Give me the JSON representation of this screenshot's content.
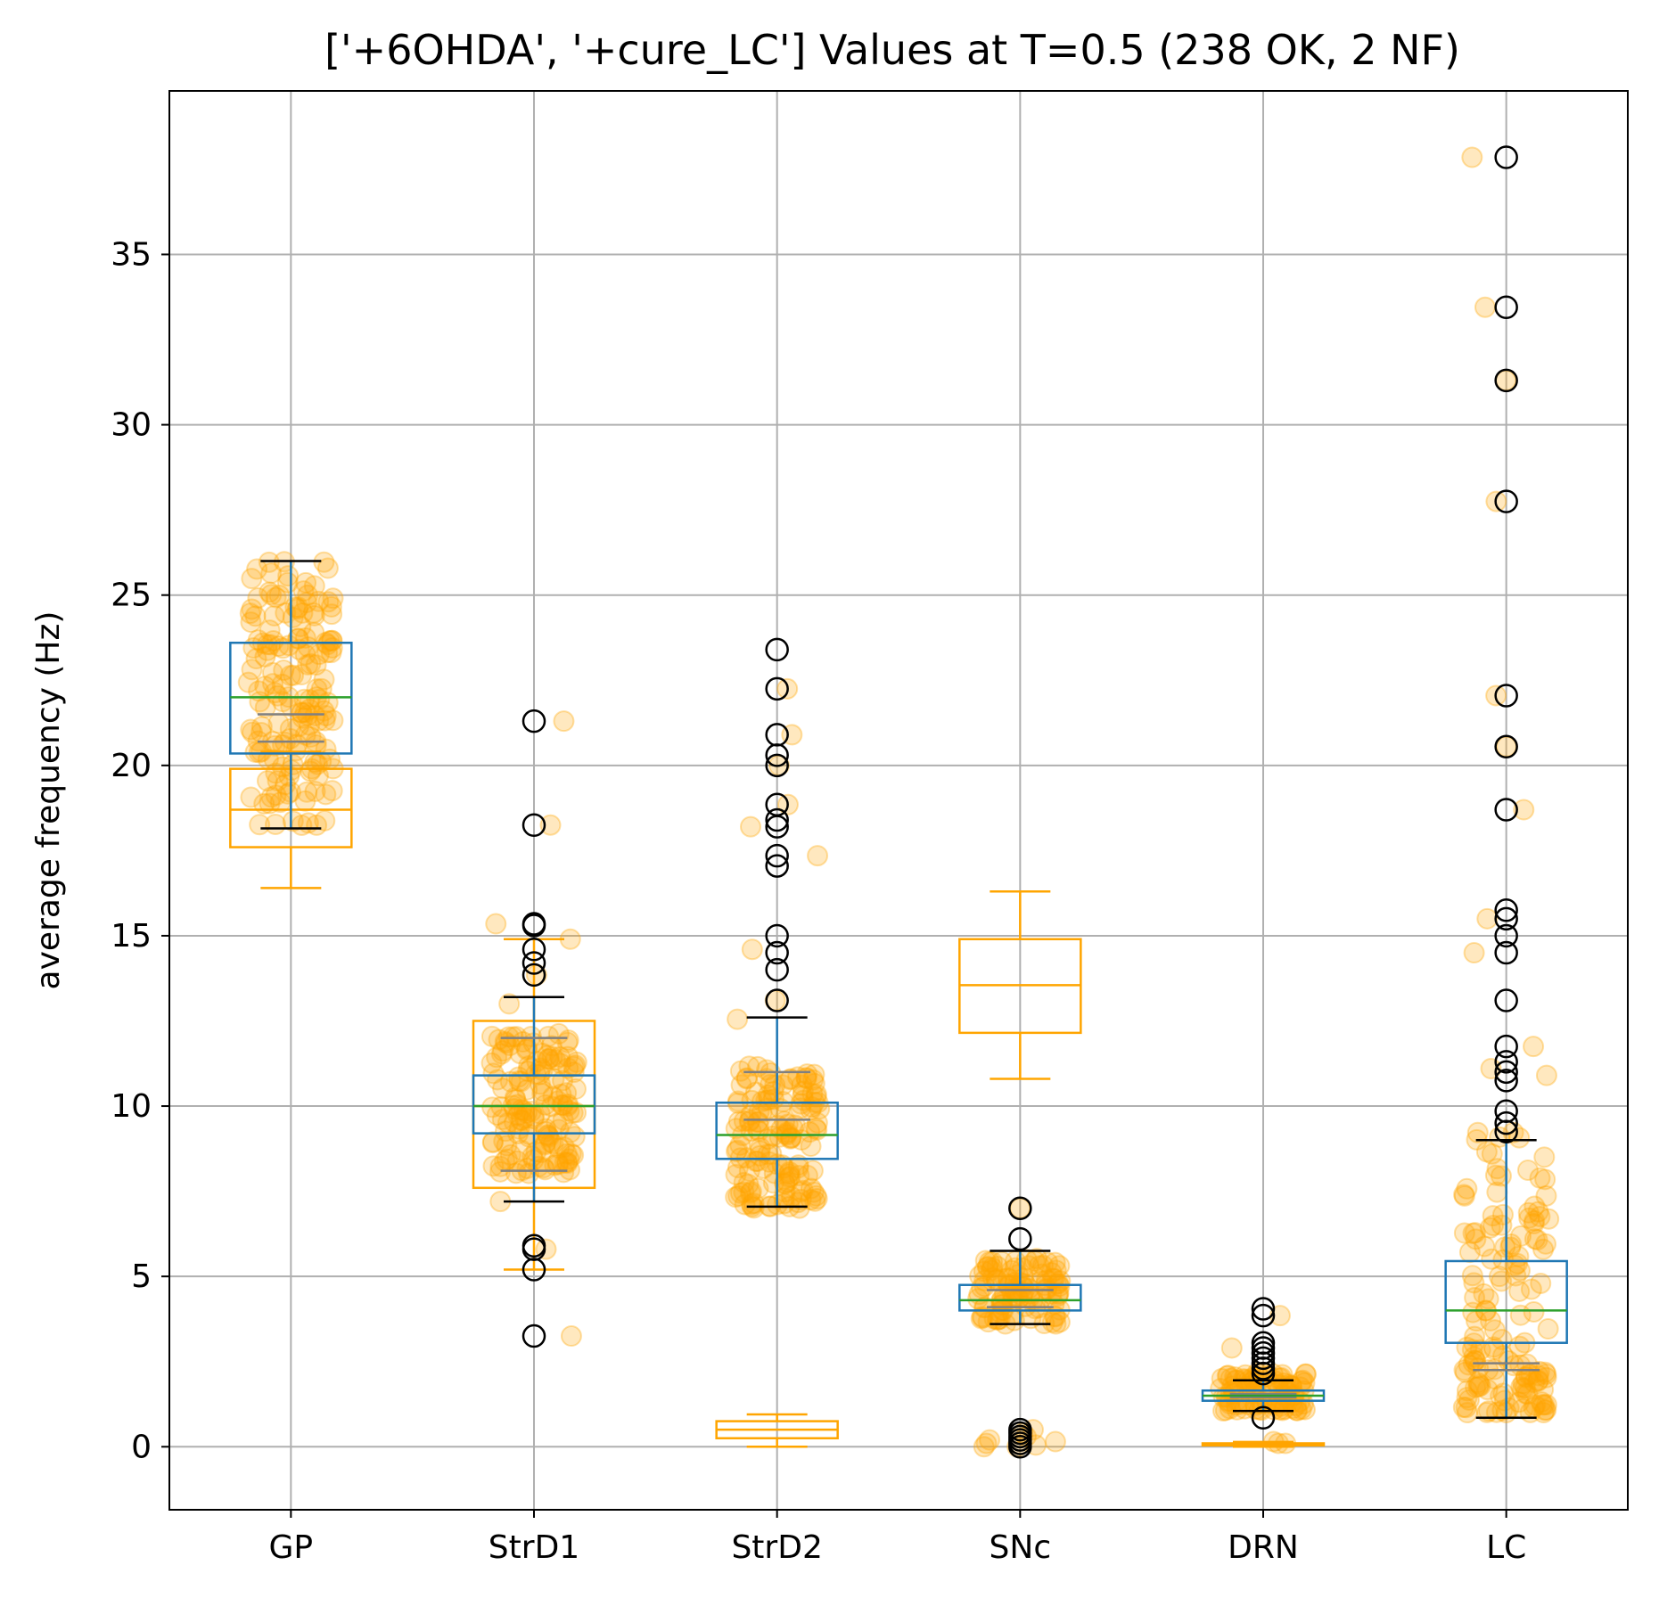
{
  "chart_data": {
    "type": "box",
    "title": "['+6OHDA', '+cure_LC'] Values at T=0.5 (238 OK, 2 NF)",
    "xlabel": "",
    "ylabel": "average frequency (Hz)",
    "ylim": [
      -1.85,
      39.8
    ],
    "grid": true,
    "categories": [
      "GP",
      "StrD1",
      "StrD2",
      "SNc",
      "DRN",
      "LC"
    ],
    "yticks": [
      0,
      5,
      10,
      15,
      20,
      25,
      30,
      35
    ],
    "colors": {
      "reference_box": "#ffa500",
      "box": "#1f77b4",
      "median": "#2ca02c",
      "mean_marker": "#808080",
      "points": "#ffa500",
      "outlier_edge": "#000000",
      "grid": "#b0b0b0"
    },
    "reference_boxes": [
      {
        "category": "GP",
        "whisker_low": 16.4,
        "q1": 17.6,
        "median": 18.7,
        "q3": 19.9,
        "whisker_high": 20.4
      },
      {
        "category": "StrD1",
        "whisker_low": 5.2,
        "q1": 7.6,
        "median": 10.0,
        "q3": 12.5,
        "whisker_high": 14.9
      },
      {
        "category": "StrD2",
        "whisker_low": 0.0,
        "q1": 0.25,
        "median": 0.5,
        "q3": 0.75,
        "whisker_high": 0.95
      },
      {
        "category": "SNc",
        "whisker_low": 10.8,
        "q1": 12.15,
        "median": 13.55,
        "q3": 14.9,
        "whisker_high": 16.3
      },
      {
        "category": "DRN",
        "whisker_low": 0.0,
        "q1": 0.04,
        "median": 0.07,
        "q3": 0.1,
        "whisker_high": 0.14
      }
    ],
    "boxes": [
      {
        "category": "GP",
        "whisker_low": 18.15,
        "q1": 20.35,
        "median": 22.0,
        "q3": 23.6,
        "whisker_high": 26.0,
        "mean_low": 20.7,
        "mean_high": 21.5,
        "outliers": []
      },
      {
        "category": "StrD1",
        "whisker_low": 7.2,
        "q1": 9.2,
        "median": 10.0,
        "q3": 10.9,
        "whisker_high": 13.2,
        "mean_low": 8.1,
        "mean_high": 12.0,
        "outliers": [
          21.3,
          18.25,
          15.35,
          15.3,
          14.6,
          14.2,
          13.85,
          5.9,
          5.8,
          5.2,
          3.25
        ]
      },
      {
        "category": "StrD2",
        "whisker_low": 7.05,
        "q1": 8.45,
        "median": 9.15,
        "q3": 10.1,
        "whisker_high": 12.6,
        "mean_low": 9.6,
        "mean_high": 11.0,
        "outliers": [
          23.4,
          22.25,
          20.9,
          20.3,
          20.0,
          18.85,
          18.4,
          18.2,
          17.35,
          17.05,
          15.0,
          14.5,
          14.0,
          13.1
        ]
      },
      {
        "category": "SNc",
        "whisker_low": 3.6,
        "q1": 4.0,
        "median": 4.3,
        "q3": 4.75,
        "whisker_high": 5.75,
        "mean_low": 4.1,
        "mean_high": 4.6,
        "outliers": [
          7.0,
          6.1,
          0.5,
          0.4,
          0.3,
          0.2,
          0.1,
          0.0
        ]
      },
      {
        "category": "DRN",
        "whisker_low": 1.05,
        "q1": 1.35,
        "median": 1.5,
        "q3": 1.65,
        "whisker_high": 1.95,
        "mean_low": 1.45,
        "mean_high": 1.55,
        "outliers": [
          4.05,
          3.85,
          3.05,
          2.9,
          2.75,
          2.6,
          2.45,
          2.3,
          2.15,
          0.85
        ]
      },
      {
        "category": "LC",
        "whisker_low": 0.85,
        "q1": 3.05,
        "median": 4.0,
        "q3": 5.45,
        "whisker_high": 9.0,
        "mean_low": 2.25,
        "mean_high": 2.45,
        "outliers": [
          37.85,
          33.45,
          31.3,
          27.75,
          22.05,
          20.55,
          18.7,
          15.75,
          15.5,
          15.0,
          14.5,
          13.1,
          11.75,
          11.3,
          11.0,
          10.75,
          9.85,
          9.5,
          9.25
        ]
      }
    ],
    "points": [
      {
        "category": "GP",
        "dist": "uniform",
        "low": 18.2,
        "high": 26.0,
        "n": 170
      },
      {
        "category": "StrD1",
        "dist": "uniform",
        "low": 8.0,
        "high": 12.2,
        "n": 150,
        "extra": [
          13.0,
          13.85,
          14.9,
          15.35,
          18.25,
          21.3,
          7.2,
          5.8,
          3.25
        ]
      },
      {
        "category": "StrD2",
        "dist": "uniform",
        "low": 7.0,
        "high": 11.3,
        "n": 150,
        "extra": [
          12.55,
          14.6,
          17.35,
          18.2,
          18.85,
          20.0,
          20.9,
          22.25,
          13.1
        ]
      },
      {
        "category": "SNc",
        "dist": "uniform",
        "low": 3.6,
        "high": 5.6,
        "n": 110,
        "extra": [
          7.0,
          0.0,
          0.05,
          0.1,
          0.2,
          0.3,
          0.4,
          0.5,
          0.0,
          0.15
        ]
      },
      {
        "category": "DRN",
        "dist": "uniform",
        "low": 1.05,
        "high": 2.2,
        "n": 100,
        "extra": [
          2.9,
          3.85,
          0.1,
          0.15,
          0.1
        ]
      },
      {
        "category": "LC",
        "dist": "skewed",
        "low": 1.0,
        "high": 9.3,
        "n": 150,
        "extra": [
          37.85,
          33.45,
          31.3,
          27.75,
          22.05,
          20.55,
          18.7,
          15.5,
          14.5,
          11.75,
          11.1,
          10.9
        ]
      }
    ]
  }
}
